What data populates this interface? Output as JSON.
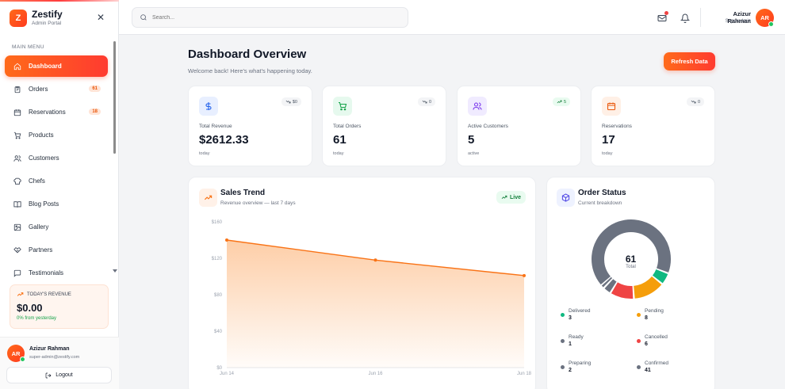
{
  "app": {
    "logo_letter": "Z",
    "name": "Zestify",
    "subtitle": "Admin Portal"
  },
  "sidebar": {
    "section_label": "MAIN MENU",
    "items": [
      {
        "label": "Dashboard",
        "icon": "home-icon",
        "active": true
      },
      {
        "label": "Orders",
        "icon": "clipboard-icon",
        "badge": "61"
      },
      {
        "label": "Reservations",
        "icon": "calendar-icon",
        "badge": "18"
      },
      {
        "label": "Products",
        "icon": "cart-icon"
      },
      {
        "label": "Customers",
        "icon": "users-icon"
      },
      {
        "label": "Chefs",
        "icon": "chef-hat-icon"
      },
      {
        "label": "Blog Posts",
        "icon": "book-icon"
      },
      {
        "label": "Gallery",
        "icon": "image-icon"
      },
      {
        "label": "Partners",
        "icon": "handshake-icon"
      },
      {
        "label": "Testimonials",
        "icon": "quote-icon"
      }
    ],
    "today_revenue": {
      "label": "TODAY'S REVENUE",
      "value": "$0.00",
      "change": "0% from yesterday"
    },
    "user": {
      "initials": "AR",
      "name": "Azizur Rahman",
      "email": "super-admin@zestify.com"
    },
    "logout_label": "Logout"
  },
  "header": {
    "search_placeholder": "Search...",
    "user": {
      "name": "Azizur Rahman",
      "role": "Superadmin",
      "initials": "AR"
    }
  },
  "page": {
    "title": "Dashboard Overview",
    "subtitle": "Welcome back! Here's what's happening today.",
    "refresh_label": "Refresh Data"
  },
  "stats": [
    {
      "label": "Total Revenue",
      "value": "$2612.33",
      "note": "today",
      "trend": "$0",
      "trend_dir": "down",
      "icon": "dollar-icon",
      "color": "#2563eb",
      "bg": "#e8efff"
    },
    {
      "label": "Total Orders",
      "value": "61",
      "note": "today",
      "trend": "0",
      "trend_dir": "down",
      "icon": "cart-icon",
      "color": "#16a34a",
      "bg": "#e6f9ee"
    },
    {
      "label": "Active Customers",
      "value": "5",
      "note": "active",
      "trend": "5",
      "trend_dir": "up",
      "icon": "users-icon",
      "color": "#7c3aed",
      "bg": "#f0ebff"
    },
    {
      "label": "Reservations",
      "value": "17",
      "note": "today",
      "trend": "0",
      "trend_dir": "down",
      "icon": "calendar-icon",
      "color": "#ea580c",
      "bg": "#fff0e6"
    }
  ],
  "sales_trend": {
    "title": "Sales Trend",
    "subtitle": "Revenue overview — last 7 days",
    "live_label": "Live"
  },
  "order_status": {
    "title": "Order Status",
    "subtitle": "Current breakdown",
    "total": "61",
    "total_label": "Total",
    "legend": [
      {
        "label": "Delivered",
        "count": "3",
        "color": "#10b981"
      },
      {
        "label": "Pending",
        "count": "8",
        "color": "#f59e0b"
      },
      {
        "label": "Ready",
        "count": "1",
        "color": "#6b7280"
      },
      {
        "label": "Cancelled",
        "count": "6",
        "color": "#ef4444"
      },
      {
        "label": "Preparing",
        "count": "2",
        "color": "#6b7280"
      },
      {
        "label": "Confirmed",
        "count": "41",
        "color": "#6b7280"
      }
    ]
  },
  "chart_data": [
    {
      "type": "area",
      "x": [
        "Jun 14",
        "Jun 16",
        "Jun 18"
      ],
      "y": [
        140,
        118,
        101
      ],
      "y_ticks": [
        "$0",
        "$40",
        "$80",
        "$120",
        "$160"
      ],
      "ylim": [
        0,
        160
      ],
      "color": "#f97316"
    },
    {
      "type": "pie",
      "variant": "donut",
      "slices": [
        {
          "label": "Confirmed",
          "value": 41,
          "color": "#6b7280"
        },
        {
          "label": "Delivered",
          "value": 3,
          "color": "#10b981"
        },
        {
          "label": "Pending",
          "value": 8,
          "color": "#f59e0b"
        },
        {
          "label": "Cancelled",
          "value": 6,
          "color": "#ef4444"
        },
        {
          "label": "Preparing",
          "value": 2,
          "color": "#6b7280"
        },
        {
          "label": "Ready",
          "value": 1,
          "color": "#6b7280"
        }
      ]
    }
  ]
}
